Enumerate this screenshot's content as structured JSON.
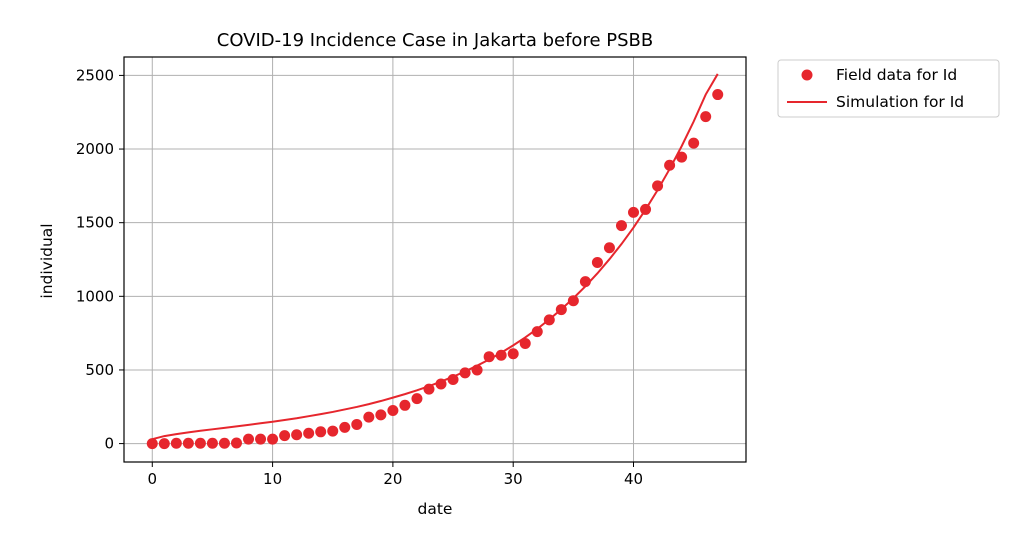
{
  "chart_data": {
    "type": "scatter",
    "title": "COVID-19 Incidence Case in Jakarta before PSBB",
    "xlabel": "date",
    "ylabel": "individual",
    "xlim": [
      -2.35,
      49.35
    ],
    "ylim": [
      -125,
      2625
    ],
    "xticks": [
      0,
      10,
      20,
      30,
      40
    ],
    "yticks": [
      0,
      500,
      1000,
      1500,
      2000,
      2500
    ],
    "grid": true,
    "legend_position": "outside-upper-right",
    "colors": {
      "series": "#e6262d",
      "grid": "#b0b0b0",
      "axes": "#000000"
    },
    "series": [
      {
        "name": "Field data for Id",
        "kind": "scatter",
        "x": [
          0,
          1,
          2,
          3,
          4,
          5,
          6,
          7,
          8,
          9,
          10,
          11,
          12,
          13,
          14,
          15,
          16,
          17,
          18,
          19,
          20,
          21,
          22,
          23,
          24,
          25,
          26,
          27,
          28,
          29,
          30,
          31,
          32,
          33,
          34,
          35,
          36,
          37,
          38,
          39,
          40,
          41,
          42,
          43,
          44,
          45,
          46,
          47
        ],
        "y": [
          0,
          0,
          2,
          2,
          2,
          2,
          2,
          4,
          30,
          30,
          30,
          54,
          60,
          70,
          80,
          85,
          110,
          130,
          180,
          195,
          225,
          260,
          305,
          370,
          405,
          435,
          480,
          500,
          590,
          600,
          610,
          680,
          760,
          840,
          910,
          970,
          1100,
          1230,
          1330,
          1480,
          1570,
          1590,
          1750,
          1890,
          1945,
          2040,
          2220,
          2370
        ]
      },
      {
        "name": "Simulation for Id",
        "kind": "line",
        "x": [
          0,
          1,
          2,
          3,
          4,
          5,
          6,
          7,
          8,
          9,
          10,
          11,
          12,
          13,
          14,
          15,
          16,
          17,
          18,
          19,
          20,
          21,
          22,
          23,
          24,
          25,
          26,
          27,
          28,
          29,
          30,
          31,
          32,
          33,
          34,
          35,
          36,
          37,
          38,
          39,
          40,
          41,
          42,
          43,
          44,
          45,
          46,
          47
        ],
        "y": [
          30,
          51,
          64,
          76,
          87,
          97,
          107,
          117,
          127,
          138,
          148,
          160,
          172,
          186,
          200,
          215,
          232,
          249,
          268,
          289,
          312,
          336,
          362,
          390,
          421,
          454,
          490,
          529,
          571,
          617,
          667,
          721,
          779,
          843,
          912,
          987,
          1068,
          1156,
          1252,
          1355,
          1467,
          1589,
          1721,
          1864,
          2019,
          2187,
          2370,
          2510
        ]
      }
    ]
  }
}
